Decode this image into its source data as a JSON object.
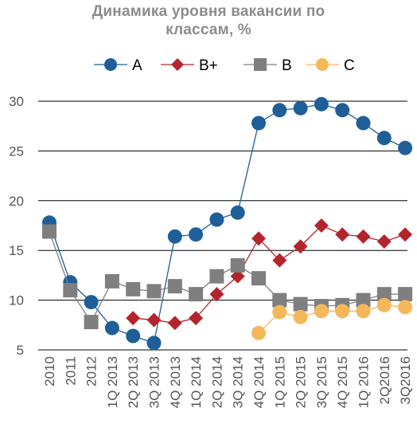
{
  "chart_data": {
    "type": "line",
    "title_lines": [
      "Динамика уровня вакансии по",
      "классам, %"
    ],
    "xlabel": "",
    "ylabel": "",
    "ylim": [
      5,
      30
    ],
    "yticks": [
      5,
      10,
      15,
      20,
      25,
      30
    ],
    "grid": "horizontal",
    "legend_position": "top",
    "categories": [
      "2010",
      "2011",
      "2012",
      "1Q 2013",
      "2Q 2013",
      "3Q 2013",
      "4Q 2013",
      "1Q 2014",
      "2Q 2014",
      "3Q 2014",
      "4Q 2014",
      "1Q 2015",
      "2Q 2015",
      "3Q 2015",
      "4Q 2015",
      "1Q 2016",
      "2Q2016",
      "3Q2016"
    ],
    "series": [
      {
        "name": "A",
        "color": "#1f5f99",
        "marker": "circle",
        "values": [
          17.8,
          11.8,
          9.8,
          7.2,
          6.4,
          5.7,
          16.4,
          16.6,
          18.1,
          18.8,
          27.8,
          29.1,
          29.3,
          29.7,
          29.1,
          27.8,
          26.3,
          25.3
        ]
      },
      {
        "name": "B+",
        "color": "#b3242c",
        "marker": "diamond",
        "values": [
          null,
          null,
          null,
          null,
          8.2,
          8.0,
          7.7,
          8.2,
          10.6,
          12.4,
          16.2,
          14.0,
          15.4,
          17.5,
          16.6,
          16.4,
          15.9,
          16.6
        ]
      },
      {
        "name": "B",
        "color": "#7f7f7f",
        "marker": "square",
        "values": [
          16.9,
          11.0,
          7.8,
          11.9,
          11.1,
          10.9,
          11.4,
          10.6,
          12.4,
          13.5,
          12.2,
          10.0,
          9.6,
          9.4,
          9.5,
          10.0,
          10.6,
          10.6
        ]
      },
      {
        "name": "C",
        "color": "#f4b85a",
        "marker": "circle",
        "values": [
          null,
          null,
          null,
          null,
          null,
          null,
          null,
          null,
          null,
          null,
          6.7,
          8.8,
          8.3,
          8.9,
          8.9,
          8.9,
          9.5,
          9.3
        ]
      }
    ]
  }
}
